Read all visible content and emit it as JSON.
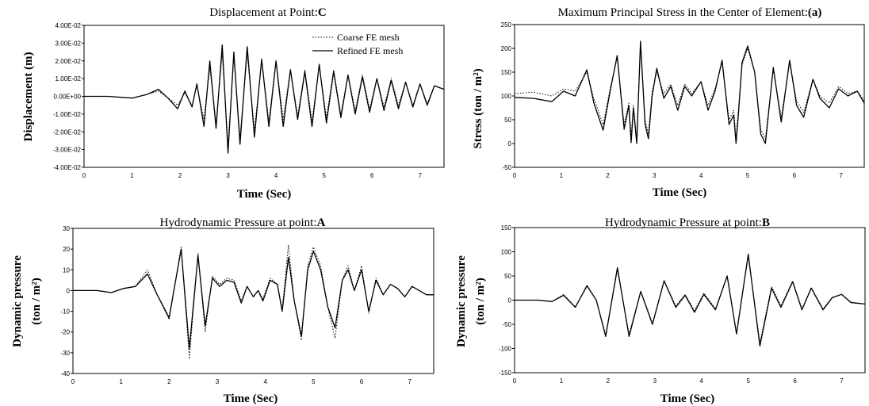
{
  "legend": {
    "coarse": "Coarse FE mesh",
    "refined": "Refined FE mesh"
  },
  "chart_data": [
    {
      "type": "line",
      "title": "Displacement at Point:",
      "title_mark": "C",
      "xlabel": "Time (Sec)",
      "ylabel": "Displacement (m)",
      "xlim": [
        0,
        7.5
      ],
      "ylim": [
        -0.04,
        0.04
      ],
      "x_ticks": [
        "0",
        "1",
        "2",
        "3",
        "4",
        "5",
        "6",
        "7"
      ],
      "y_ticks": [
        "4.00E-02",
        "3.00E-02",
        "2.00E-02",
        "1.00E-02",
        "0.00E+00",
        "-1.00E-02",
        "-2.00E-02",
        "-3.00E-02",
        "-4.00E-02"
      ],
      "legend": "top-right",
      "series": [
        {
          "name": "Refined FE mesh",
          "style": "solid",
          "x": [
            0,
            0.5,
            1.0,
            1.3,
            1.55,
            1.75,
            1.95,
            2.1,
            2.25,
            2.35,
            2.5,
            2.62,
            2.75,
            2.88,
            3.0,
            3.12,
            3.25,
            3.4,
            3.55,
            3.7,
            3.85,
            4.0,
            4.15,
            4.3,
            4.45,
            4.6,
            4.75,
            4.9,
            5.05,
            5.2,
            5.35,
            5.5,
            5.65,
            5.8,
            5.95,
            6.1,
            6.25,
            6.4,
            6.55,
            6.7,
            6.85,
            7.0,
            7.15,
            7.3,
            7.5
          ],
          "y": [
            0,
            0,
            -0.001,
            0.001,
            0.004,
            -0.001,
            -0.007,
            0.003,
            -0.006,
            0.007,
            -0.017,
            0.02,
            -0.018,
            0.029,
            -0.032,
            0.025,
            -0.027,
            0.028,
            -0.023,
            0.021,
            -0.017,
            0.02,
            -0.017,
            0.015,
            -0.013,
            0.014,
            -0.017,
            0.018,
            -0.015,
            0.014,
            -0.012,
            0.012,
            -0.01,
            0.011,
            -0.009,
            0.01,
            -0.008,
            0.009,
            -0.007,
            0.008,
            -0.006,
            0.007,
            -0.005,
            0.006,
            0.004
          ]
        },
        {
          "name": "Coarse FE mesh",
          "style": "dotted",
          "x": [
            0,
            0.5,
            1.0,
            1.3,
            1.55,
            1.75,
            1.95,
            2.1,
            2.25,
            2.35,
            2.5,
            2.62,
            2.75,
            2.88,
            3.0,
            3.12,
            3.25,
            3.4,
            3.55,
            3.7,
            3.85,
            4.0,
            4.15,
            4.3,
            4.45,
            4.6,
            4.75,
            4.9,
            5.05,
            5.2,
            5.35,
            5.5,
            5.65,
            5.8,
            5.95,
            6.1,
            6.25,
            6.4,
            6.55,
            6.7,
            6.85,
            7.0,
            7.15,
            7.3,
            7.5
          ],
          "y": [
            0,
            0,
            -0.001,
            0.001,
            0.003,
            -0.001,
            -0.005,
            0.002,
            -0.005,
            0.006,
            -0.013,
            0.016,
            -0.015,
            0.024,
            -0.027,
            0.022,
            -0.023,
            0.024,
            -0.019,
            0.02,
            -0.014,
            0.02,
            -0.013,
            0.015,
            -0.011,
            0.015,
            -0.014,
            0.017,
            -0.012,
            0.015,
            -0.01,
            0.012,
            -0.008,
            0.012,
            -0.007,
            0.01,
            -0.006,
            0.01,
            -0.005,
            0.008,
            -0.005,
            0.007,
            -0.004,
            0.006,
            0.004
          ]
        }
      ]
    },
    {
      "type": "line",
      "title": "Maximum Principal Stress in the Center of Element:",
      "title_mark": "(a)",
      "xlabel": "Time (Sec)",
      "ylabel": "Stress (ton / m²)",
      "xlim": [
        0,
        7.5
      ],
      "ylim": [
        -50,
        250
      ],
      "x_ticks": [
        "0",
        "1",
        "2",
        "3",
        "4",
        "5",
        "6",
        "7"
      ],
      "y_ticks": [
        "250",
        "200",
        "150",
        "100",
        "50",
        "0",
        "-50"
      ],
      "series": [
        {
          "name": "Refined FE mesh",
          "style": "solid",
          "x": [
            0,
            0.4,
            0.8,
            1.05,
            1.3,
            1.55,
            1.7,
            1.9,
            2.05,
            2.2,
            2.35,
            2.45,
            2.5,
            2.55,
            2.62,
            2.7,
            2.8,
            2.87,
            2.95,
            3.05,
            3.2,
            3.35,
            3.5,
            3.65,
            3.8,
            4.0,
            4.15,
            4.3,
            4.45,
            4.6,
            4.7,
            4.75,
            4.8,
            4.88,
            5.0,
            5.15,
            5.28,
            5.38,
            5.55,
            5.72,
            5.9,
            6.05,
            6.2,
            6.4,
            6.55,
            6.75,
            6.95,
            7.15,
            7.35,
            7.5
          ],
          "y": [
            97,
            95,
            88,
            110,
            100,
            155,
            85,
            28,
            110,
            185,
            30,
            80,
            2,
            75,
            0,
            215,
            40,
            10,
            100,
            158,
            95,
            120,
            70,
            120,
            100,
            130,
            70,
            110,
            175,
            40,
            60,
            0,
            60,
            170,
            205,
            150,
            20,
            0,
            160,
            45,
            175,
            80,
            55,
            135,
            95,
            75,
            115,
            100,
            110,
            85
          ]
        },
        {
          "name": "Coarse FE mesh",
          "style": "dotted",
          "x": [
            0,
            0.4,
            0.8,
            1.05,
            1.3,
            1.55,
            1.7,
            1.9,
            2.05,
            2.2,
            2.35,
            2.45,
            2.5,
            2.55,
            2.62,
            2.7,
            2.8,
            2.87,
            2.95,
            3.05,
            3.2,
            3.35,
            3.5,
            3.65,
            3.8,
            4.0,
            4.15,
            4.3,
            4.45,
            4.6,
            4.7,
            4.75,
            4.8,
            4.88,
            5.0,
            5.15,
            5.28,
            5.38,
            5.55,
            5.72,
            5.9,
            6.05,
            6.2,
            6.4,
            6.55,
            6.75,
            6.95,
            7.15,
            7.35,
            7.5
          ],
          "y": [
            105,
            108,
            100,
            115,
            110,
            150,
            95,
            40,
            115,
            180,
            40,
            85,
            15,
            80,
            10,
            205,
            50,
            20,
            110,
            150,
            105,
            125,
            80,
            125,
            105,
            130,
            80,
            115,
            170,
            50,
            70,
            10,
            70,
            165,
            200,
            150,
            30,
            10,
            155,
            55,
            170,
            90,
            65,
            135,
            100,
            85,
            120,
            105,
            110,
            90
          ]
        }
      ]
    },
    {
      "type": "line",
      "title": "Hydrodynamic Pressure at point:",
      "title_mark": "A",
      "xlabel": "Time (Sec)",
      "ylabel_line1": "Dynamic pressure",
      "ylabel_line2": "(ton / m²)",
      "xlim": [
        0,
        7.5
      ],
      "ylim": [
        -40,
        30
      ],
      "x_ticks": [
        "0",
        "1",
        "2",
        "3",
        "4",
        "5",
        "6",
        "7"
      ],
      "y_ticks": [
        "30",
        "20",
        "10",
        "0",
        "-10",
        "-20",
        "-30",
        "-40"
      ],
      "series": [
        {
          "name": "Refined FE mesh",
          "style": "solid",
          "x": [
            0,
            0.5,
            0.8,
            1.05,
            1.3,
            1.55,
            1.75,
            2.0,
            2.25,
            2.42,
            2.6,
            2.75,
            2.9,
            3.05,
            3.2,
            3.35,
            3.5,
            3.62,
            3.75,
            3.85,
            3.95,
            4.1,
            4.25,
            4.35,
            4.48,
            4.6,
            4.75,
            4.88,
            5.0,
            5.15,
            5.3,
            5.45,
            5.6,
            5.72,
            5.85,
            6.0,
            6.15,
            6.3,
            6.45,
            6.6,
            6.75,
            6.9,
            7.05,
            7.2,
            7.35,
            7.5
          ],
          "y": [
            0,
            0,
            -1,
            1,
            2,
            8,
            -2,
            -13,
            20,
            -28,
            17,
            -17,
            6,
            2,
            5,
            4,
            -6,
            2,
            -3,
            0,
            -5,
            5,
            3,
            -10,
            16,
            -5,
            -22,
            10,
            19,
            10,
            -8,
            -18,
            5,
            10,
            0,
            10,
            -10,
            5,
            -2,
            3,
            1,
            -3,
            2,
            0,
            -2,
            -2
          ]
        },
        {
          "name": "Coarse FE mesh",
          "style": "dotted",
          "x": [
            0,
            0.5,
            0.8,
            1.05,
            1.3,
            1.55,
            1.75,
            2.0,
            2.25,
            2.42,
            2.6,
            2.75,
            2.9,
            3.05,
            3.2,
            3.35,
            3.5,
            3.62,
            3.75,
            3.85,
            3.95,
            4.1,
            4.25,
            4.35,
            4.48,
            4.6,
            4.75,
            4.88,
            5.0,
            5.15,
            5.3,
            5.45,
            5.6,
            5.72,
            5.85,
            6.0,
            6.15,
            6.3,
            6.45,
            6.6,
            6.75,
            6.9,
            7.05,
            7.2,
            7.35,
            7.5
          ],
          "y": [
            0,
            0,
            -1,
            1,
            2,
            10,
            -2,
            -14,
            21,
            -33,
            18,
            -20,
            7,
            3,
            6,
            5,
            -5,
            2,
            -3,
            0,
            -4,
            6,
            3,
            -9,
            22,
            -5,
            -24,
            12,
            21,
            12,
            -8,
            -23,
            5,
            12,
            0,
            12,
            -11,
            6,
            -2,
            3,
            1,
            -3,
            2,
            0,
            -2,
            -2
          ]
        }
      ]
    },
    {
      "type": "line",
      "title": "Hydrodynamic Pressure at point:",
      "title_mark": "B",
      "xlabel": "Time (Sec)",
      "ylabel_line1": "Dynamic pressure",
      "ylabel_line2": "(ton / m²)",
      "xlim": [
        0,
        7.5
      ],
      "ylim": [
        -150,
        150
      ],
      "x_ticks": [
        "0",
        "1",
        "2",
        "3",
        "4",
        "5",
        "6",
        "7"
      ],
      "y_ticks": [
        "150",
        "100",
        "50",
        "0",
        "-50",
        "-100",
        "-150"
      ],
      "series": [
        {
          "name": "Refined FE mesh",
          "style": "solid",
          "x": [
            0,
            0.5,
            0.8,
            1.05,
            1.3,
            1.55,
            1.75,
            1.95,
            2.2,
            2.45,
            2.7,
            2.95,
            3.2,
            3.45,
            3.65,
            3.85,
            4.05,
            4.3,
            4.55,
            4.75,
            5.0,
            5.25,
            5.5,
            5.7,
            5.95,
            6.15,
            6.35,
            6.6,
            6.8,
            7.0,
            7.2,
            7.5
          ],
          "y": [
            0,
            0,
            -3,
            10,
            -15,
            30,
            0,
            -75,
            67,
            -75,
            18,
            -50,
            40,
            -15,
            10,
            -25,
            12,
            -20,
            50,
            -70,
            95,
            -95,
            25,
            -15,
            38,
            -20,
            25,
            -20,
            5,
            12,
            -5,
            -8
          ]
        },
        {
          "name": "Coarse FE mesh",
          "style": "dotted",
          "x": [
            0,
            0.5,
            0.8,
            1.05,
            1.3,
            1.55,
            1.75,
            1.95,
            2.2,
            2.45,
            2.7,
            2.95,
            3.2,
            3.45,
            3.65,
            3.85,
            4.05,
            4.3,
            4.55,
            4.75,
            5.0,
            5.25,
            5.5,
            5.7,
            5.95,
            6.15,
            6.35,
            6.6,
            6.8,
            7.0,
            7.2,
            7.5
          ],
          "y": [
            0,
            0,
            -3,
            12,
            -14,
            28,
            0,
            -72,
            62,
            -70,
            18,
            -48,
            40,
            -12,
            12,
            -22,
            15,
            -18,
            50,
            -68,
            90,
            -88,
            28,
            -12,
            40,
            -18,
            26,
            -18,
            6,
            12,
            -4,
            -8
          ]
        }
      ]
    }
  ]
}
